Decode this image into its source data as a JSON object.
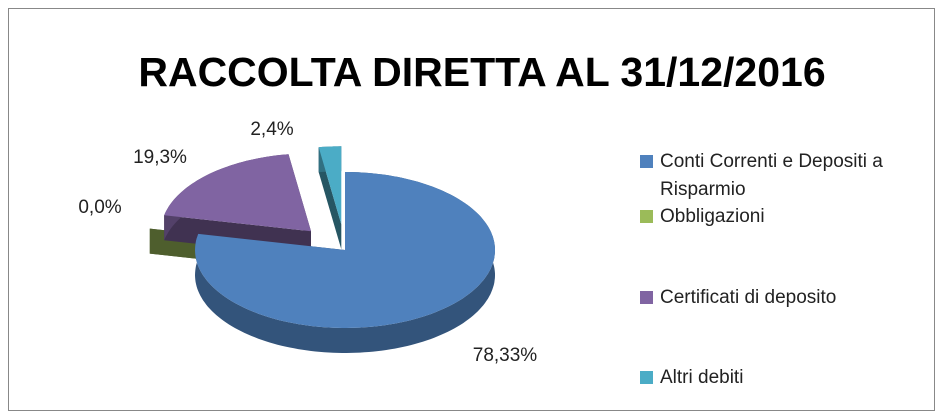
{
  "chart_data": {
    "type": "pie",
    "title": "RACCOLTA DIRETTA AL 31/12/2016",
    "categories": [
      "Conti Correnti e Depositi a Risparmio",
      "Obbligazioni",
      "Certificati di deposito",
      "Altri debiti"
    ],
    "values": [
      78.33,
      0.0,
      19.3,
      2.4
    ],
    "value_labels": [
      "78,33%",
      "0,0%",
      "19,3%",
      "2,4%"
    ],
    "colors": [
      "#4f81bd",
      "#9bbb59",
      "#8064a2",
      "#4bacc6"
    ],
    "legend": "right"
  }
}
